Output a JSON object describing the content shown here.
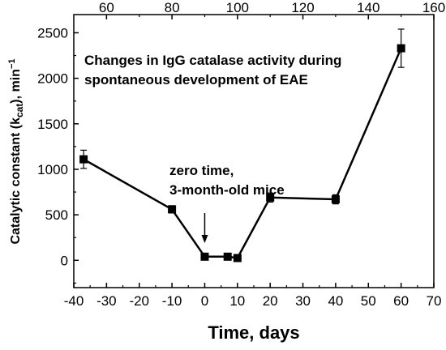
{
  "chart_data": {
    "type": "line",
    "title_lines": [
      "Changes in  IgG catalase activity  during",
      "spontaneous development of EAE"
    ],
    "xlabel": "Time, days",
    "ylabel": "Catalytic constant (k",
    "ylabel_sub": "cat",
    "ylabel_suffix": "), min",
    "ylabel_sup": "−1",
    "xlim": [
      -40,
      70
    ],
    "ylim": [
      -300,
      2700
    ],
    "x_ticks": [
      -40,
      -30,
      -20,
      -10,
      0,
      10,
      20,
      30,
      40,
      50,
      60,
      70
    ],
    "y_ticks": [
      0,
      500,
      1000,
      1500,
      2000,
      2500
    ],
    "top_axis": {
      "offset_days": 90,
      "ticks": [
        60,
        80,
        100,
        120,
        140,
        160
      ]
    },
    "series": [
      {
        "x": [
          -37,
          -10,
          0,
          7,
          10,
          20,
          40,
          60
        ],
        "y": [
          1110,
          560,
          40,
          40,
          25,
          690,
          670,
          2330
        ],
        "error": [
          100,
          40,
          10,
          10,
          10,
          50,
          50,
          210
        ]
      }
    ],
    "annotation_lines": [
      "zero time,",
      "3-month-old mice"
    ],
    "arrow_x": 0,
    "grid": false
  }
}
